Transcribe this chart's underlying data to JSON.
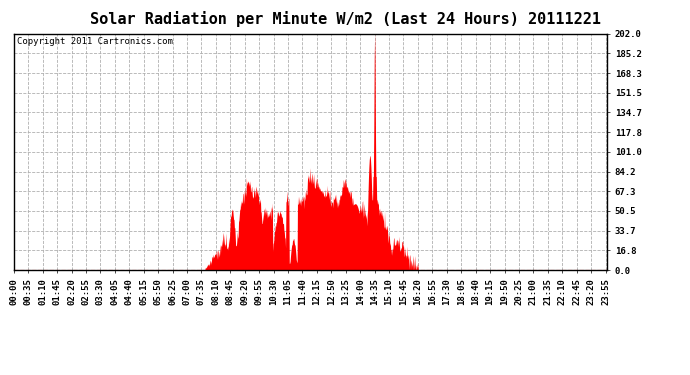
{
  "title": "Solar Radiation per Minute W/m2 (Last 24 Hours) 20111221",
  "copyright": "Copyright 2011 Cartronics.com",
  "y_tick_labels": [
    "0.0",
    "16.8",
    "33.7",
    "50.5",
    "67.3",
    "84.2",
    "101.0",
    "117.8",
    "134.7",
    "151.5",
    "168.3",
    "185.2",
    "202.0"
  ],
  "y_tick_values": [
    0.0,
    16.8,
    33.7,
    50.5,
    67.3,
    84.2,
    101.0,
    117.8,
    134.7,
    151.5,
    168.3,
    185.2,
    202.0
  ],
  "ylim": [
    0.0,
    202.0
  ],
  "bar_color": "#ff0000",
  "dashed_line_color": "#ff0000",
  "grid_color": "#b0b0b0",
  "bg_color": "#ffffff",
  "plot_bg_color": "#ffffff",
  "title_fontsize": 11,
  "copyright_fontsize": 6.5,
  "tick_fontsize": 6.5,
  "num_minutes": 1440,
  "sunrise_min": 460,
  "sunset_min": 985,
  "spike_min": 875
}
